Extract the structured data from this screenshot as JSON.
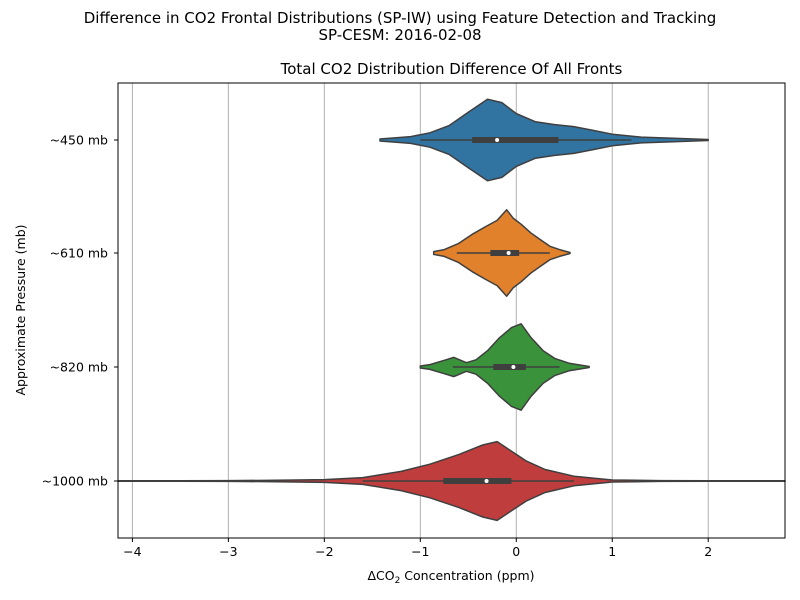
{
  "figure": {
    "suptitle_line1": "Difference in CO2 Frontal Distributions (SP-IW) using Feature Detection and Tracking",
    "suptitle_line2": "SP-CESM: 2016-02-08"
  },
  "chart_data": {
    "type": "violin",
    "orientation": "horizontal",
    "title": "Total CO2 Distribution Difference Of All Fronts",
    "xlabel_prefix": "ΔCO",
    "xlabel_sub": "2",
    "xlabel_suffix": " Concentration (ppm)",
    "ylabel": "Approximate Pressure (mb)",
    "xlim": [
      -4.15,
      2.8
    ],
    "xticks": [
      -4,
      -3,
      -2,
      -1,
      0,
      1,
      2
    ],
    "xtick_labels": [
      "−4",
      "−3",
      "−2",
      "−1",
      "0",
      "1",
      "2"
    ],
    "grid_x": true,
    "categories": [
      "~450 mb",
      "~610 mb",
      "~820 mb",
      "~1000 mb"
    ],
    "series": [
      {
        "category": "~450 mb",
        "color": "#3274a1",
        "min": -1.42,
        "q1": -0.46,
        "median": -0.2,
        "q3": 0.44,
        "max": 2.0,
        "whisker_low": -1.0,
        "whisker_high": 1.2,
        "density": [
          [
            -1.42,
            0.02
          ],
          [
            -1.3,
            0.04
          ],
          [
            -1.1,
            0.07
          ],
          [
            -0.9,
            0.15
          ],
          [
            -0.7,
            0.3
          ],
          [
            -0.5,
            0.58
          ],
          [
            -0.3,
            0.85
          ],
          [
            -0.15,
            0.78
          ],
          [
            0.0,
            0.55
          ],
          [
            0.2,
            0.38
          ],
          [
            0.4,
            0.32
          ],
          [
            0.6,
            0.28
          ],
          [
            0.8,
            0.2
          ],
          [
            1.0,
            0.12
          ],
          [
            1.3,
            0.06
          ],
          [
            1.6,
            0.04
          ],
          [
            2.0,
            0.01
          ]
        ]
      },
      {
        "category": "~610 mb",
        "color": "#e1812c",
        "min": -0.86,
        "q1": -0.27,
        "median": -0.08,
        "q3": 0.03,
        "max": 0.56,
        "whisker_low": -0.62,
        "whisker_high": 0.35,
        "density": [
          [
            -0.86,
            0.03
          ],
          [
            -0.75,
            0.07
          ],
          [
            -0.6,
            0.2
          ],
          [
            -0.45,
            0.4
          ],
          [
            -0.32,
            0.55
          ],
          [
            -0.2,
            0.68
          ],
          [
            -0.1,
            0.9
          ],
          [
            -0.03,
            0.72
          ],
          [
            0.05,
            0.6
          ],
          [
            0.15,
            0.42
          ],
          [
            0.25,
            0.28
          ],
          [
            0.35,
            0.14
          ],
          [
            0.45,
            0.07
          ],
          [
            0.56,
            0.01
          ]
        ]
      },
      {
        "category": "~820 mb",
        "color": "#3a923a",
        "min": -1.0,
        "q1": -0.24,
        "median": -0.03,
        "q3": 0.1,
        "max": 0.76,
        "whisker_low": -0.66,
        "whisker_high": 0.45,
        "density": [
          [
            -1.0,
            0.02
          ],
          [
            -0.9,
            0.05
          ],
          [
            -0.75,
            0.14
          ],
          [
            -0.65,
            0.2
          ],
          [
            -0.52,
            0.09
          ],
          [
            -0.42,
            0.15
          ],
          [
            -0.3,
            0.34
          ],
          [
            -0.18,
            0.6
          ],
          [
            -0.05,
            0.82
          ],
          [
            0.05,
            0.9
          ],
          [
            0.15,
            0.62
          ],
          [
            0.28,
            0.34
          ],
          [
            0.4,
            0.18
          ],
          [
            0.55,
            0.08
          ],
          [
            0.76,
            0.01
          ]
        ]
      },
      {
        "category": "~1000 mb",
        "color": "#c03d3e",
        "min": -4.15,
        "q1": -0.76,
        "median": -0.31,
        "q3": -0.05,
        "max": 2.8,
        "whisker_low": -1.6,
        "whisker_high": 0.6,
        "density": [
          [
            -4.15,
            0.005
          ],
          [
            -3.5,
            0.006
          ],
          [
            -3.0,
            0.008
          ],
          [
            -2.5,
            0.014
          ],
          [
            -2.0,
            0.03
          ],
          [
            -1.6,
            0.07
          ],
          [
            -1.2,
            0.2
          ],
          [
            -0.9,
            0.35
          ],
          [
            -0.6,
            0.55
          ],
          [
            -0.35,
            0.75
          ],
          [
            -0.2,
            0.82
          ],
          [
            -0.05,
            0.62
          ],
          [
            0.1,
            0.42
          ],
          [
            0.3,
            0.24
          ],
          [
            0.6,
            0.1
          ],
          [
            1.0,
            0.02
          ],
          [
            1.5,
            0.008
          ],
          [
            2.0,
            0.005
          ],
          [
            2.8,
            0.004
          ]
        ]
      }
    ]
  }
}
